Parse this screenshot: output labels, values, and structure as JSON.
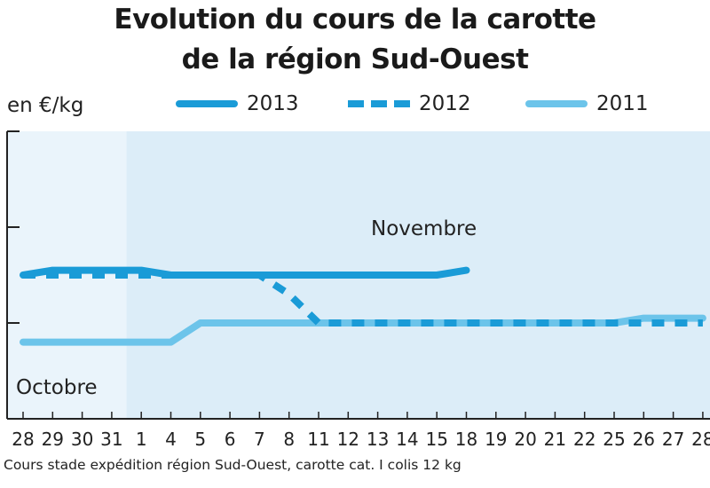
{
  "chart_data": {
    "type": "line",
    "title_line1": "Evolution du cours de la carotte",
    "title_line2": "de la région Sud-Ouest",
    "ylabel": "en €/kg",
    "categories": [
      "28",
      "29",
      "30",
      "31",
      "1",
      "4",
      "5",
      "6",
      "7",
      "8",
      "11",
      "12",
      "13",
      "14",
      "15",
      "18",
      "19",
      "20",
      "21",
      "22",
      "25",
      "26",
      "27",
      "28"
    ],
    "period_labels": {
      "october": "Octobre",
      "november": "Novembre"
    },
    "series": [
      {
        "name": "2013",
        "style": "solid",
        "color": "#1a9bd7",
        "values": [
          1.5,
          1.55,
          1.55,
          1.55,
          1.55,
          1.5,
          1.5,
          1.5,
          1.5,
          1.5,
          1.5,
          1.5,
          1.5,
          1.5,
          1.5,
          1.55,
          null,
          null,
          null,
          null,
          null,
          null,
          null,
          null
        ]
      },
      {
        "name": "2012",
        "style": "dashed",
        "color": "#1a9bd7",
        "values": [
          1.5,
          1.5,
          1.5,
          1.5,
          1.5,
          1.5,
          1.5,
          1.5,
          1.5,
          1.3,
          1.0,
          1.0,
          1.0,
          1.0,
          1.0,
          1.0,
          1.0,
          1.0,
          1.0,
          1.0,
          1.0,
          1.0,
          1.0,
          1.0
        ]
      },
      {
        "name": "2011",
        "style": "solid",
        "color": "#6cc4ea",
        "values": [
          0.8,
          0.8,
          0.8,
          0.8,
          0.8,
          0.8,
          1.0,
          1.0,
          1.0,
          1.0,
          1.0,
          1.0,
          1.0,
          1.0,
          1.0,
          1.0,
          1.0,
          1.0,
          1.0,
          1.0,
          1.0,
          1.05,
          1.05,
          1.05
        ]
      }
    ],
    "ylim": [
      0,
      3
    ],
    "yticks": [
      0,
      1,
      2,
      3
    ],
    "grid": false,
    "legend_position": "top",
    "colors": {
      "background_october": "#eaf4fb",
      "background_november": "#dcedf8",
      "axis": "#222222"
    }
  },
  "footnote": "Cours stade expédition région Sud-Ouest, carotte cat. I colis 12 kg"
}
